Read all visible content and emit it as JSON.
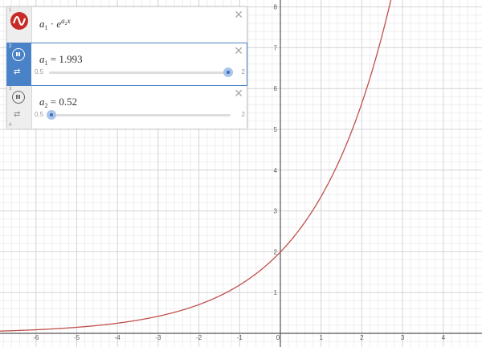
{
  "expression_list": {
    "rows": [
      {
        "number": "1",
        "formula": {
          "a1": "a",
          "a1_sub": "1",
          "dot": "·",
          "e": "e",
          "exp_a": "a",
          "exp_sub": "2",
          "exp_x": "x"
        }
      },
      {
        "number": "2",
        "variable": "a",
        "sub": "1",
        "equals": "=",
        "value": "1.993",
        "slider": {
          "min": "0.5",
          "max": "2",
          "fraction": 0.986
        }
      },
      {
        "number": "3",
        "variable": "a",
        "sub": "2",
        "equals": "=",
        "value": "0.52",
        "slider": {
          "min": "0.5",
          "max": "2",
          "fraction": 0.013
        }
      },
      {
        "number": "4"
      }
    ],
    "close_glyph": "✕",
    "loop_glyph": "⇄"
  },
  "colors": {
    "curve": "#c0504d",
    "logo": "#c62b27",
    "active": "#4a82c8"
  },
  "chart_data": {
    "type": "line",
    "function": "y = a1 · e^(a2 · x)",
    "parameters": {
      "a1": 1.993,
      "a2": 0.52
    },
    "xlim": [
      -7,
      5
    ],
    "ylim": [
      -0.4,
      8.1
    ],
    "x_ticks": [
      -6,
      -5,
      -4,
      -3,
      -2,
      -1,
      0,
      1,
      2,
      3,
      4
    ],
    "y_ticks": [
      1,
      2,
      3,
      4,
      5,
      6,
      7,
      8
    ],
    "grid": true
  }
}
